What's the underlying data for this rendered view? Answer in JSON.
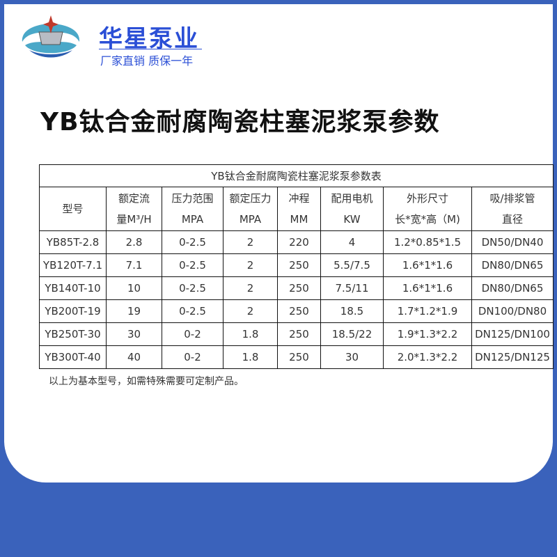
{
  "brand": {
    "name": "华星泵业",
    "slogan": "厂家直销 质保一年"
  },
  "title": "YB钛合金耐腐陶瓷柱塞泥浆泵参数",
  "table": {
    "caption": "YB钛合金耐腐陶瓷柱塞泥浆泵参数表",
    "headers": [
      [
        "型号",
        ""
      ],
      [
        "额定流",
        "量M³/H"
      ],
      [
        "压力范围",
        "MPA"
      ],
      [
        "额定压力",
        "MPA"
      ],
      [
        "冲程",
        "MM"
      ],
      [
        "配用电机",
        "KW"
      ],
      [
        "外形尺寸",
        "长*宽*高（M)"
      ],
      [
        "吸/排浆管",
        "直径"
      ]
    ],
    "rows": [
      [
        "YB85T-2.8",
        "2.8",
        "0-2.5",
        "2",
        "220",
        "4",
        "1.2*0.85*1.5",
        "DN50/DN40"
      ],
      [
        "YB120T-7.1",
        "7.1",
        "0-2.5",
        "2",
        "250",
        "5.5/7.5",
        "1.6*1*1.6",
        "DN80/DN65"
      ],
      [
        "YB140T-10",
        "10",
        "0-2.5",
        "2",
        "250",
        "7.5/11",
        "1.6*1*1.6",
        "DN80/DN65"
      ],
      [
        "YB200T-19",
        "19",
        "0-2.5",
        "2",
        "250",
        "18.5",
        "1.7*1.2*1.9",
        "DN100/DN80"
      ],
      [
        "YB250T-30",
        "30",
        "0-2",
        "1.8",
        "250",
        "18.5/22",
        "1.9*1.3*2.2",
        "DN125/DN100"
      ],
      [
        "YB300T-40",
        "40",
        "0-2",
        "1.8",
        "250",
        "30",
        "2.0*1.3*2.2",
        "DN125/DN125"
      ]
    ]
  },
  "note": "以上为基本型号，如需特殊需要可定制产品。",
  "colors": {
    "frame": "#3a62bb",
    "brand": "#2b4fd6"
  }
}
